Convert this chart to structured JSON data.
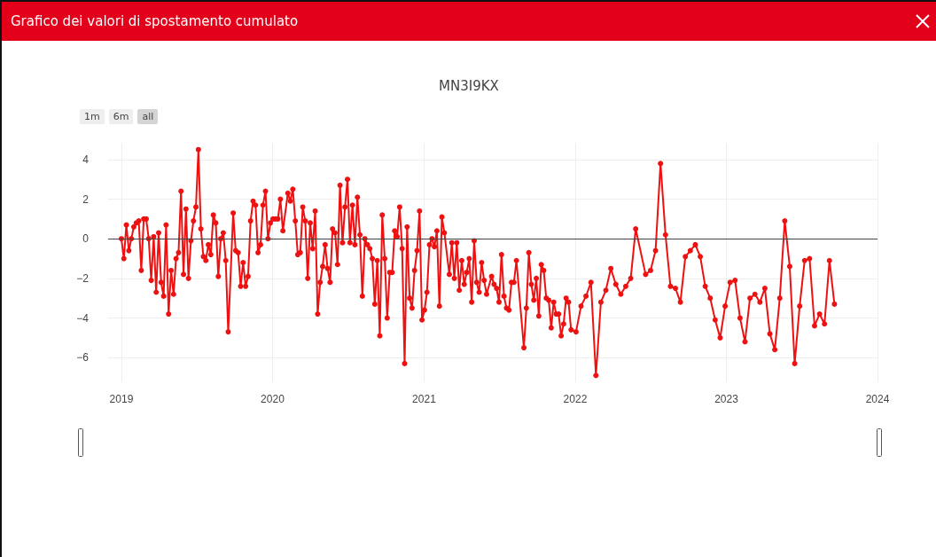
{
  "chart_data": {
    "type": "line",
    "title": "Grafico dei valori di spostamento cumulato",
    "subtitle": "MN3I9KX",
    "annotations": [
      "1m",
      "6m",
      "all"
    ],
    "color": "#ee1111",
    "marker": "circle",
    "line_style": "solid",
    "grid": true,
    "xlim": [
      "2018-11-30",
      "2024-01-01"
    ],
    "xticks": [
      "2019",
      "2020",
      "2021",
      "2022",
      "2023",
      "2024"
    ],
    "ylim": [
      -7.2,
      4.8
    ],
    "yticks": [
      -6,
      -4,
      -2,
      0,
      2,
      4
    ],
    "ref_lines": [
      {
        "axis": "y",
        "value": 0,
        "color": "#444444"
      }
    ],
    "x": [
      "2019-01-01",
      "2019-01-07",
      "2019-01-13",
      "2019-01-19",
      "2019-01-25",
      "2019-01-31",
      "2019-02-06",
      "2019-02-12",
      "2019-02-18",
      "2019-02-24",
      "2019-03-02",
      "2019-03-08",
      "2019-03-14",
      "2019-03-20",
      "2019-03-26",
      "2019-04-01",
      "2019-04-07",
      "2019-04-13",
      "2019-04-19",
      "2019-04-25",
      "2019-05-01",
      "2019-05-07",
      "2019-05-13",
      "2019-05-19",
      "2019-05-25",
      "2019-05-31",
      "2019-06-06",
      "2019-06-12",
      "2019-06-18",
      "2019-06-24",
      "2019-06-30",
      "2019-07-06",
      "2019-07-12",
      "2019-07-18",
      "2019-07-24",
      "2019-07-30",
      "2019-08-05",
      "2019-08-11",
      "2019-08-17",
      "2019-08-23",
      "2019-08-29",
      "2019-09-04",
      "2019-09-10",
      "2019-09-16",
      "2019-09-28",
      "2019-10-04",
      "2019-10-10",
      "2019-10-16",
      "2019-10-22",
      "2019-10-28",
      "2019-11-03",
      "2019-11-09",
      "2019-11-15",
      "2019-11-21",
      "2019-11-27",
      "2019-12-03",
      "2019-12-09",
      "2019-12-15",
      "2019-12-21",
      "2019-12-27",
      "2020-01-02",
      "2020-01-08",
      "2020-01-14",
      "2020-01-20",
      "2020-01-26",
      "2020-02-07",
      "2020-02-13",
      "2020-02-19",
      "2020-02-25",
      "2020-03-02",
      "2020-03-08",
      "2020-03-14",
      "2020-03-20",
      "2020-03-26",
      "2020-04-01",
      "2020-04-07",
      "2020-04-13",
      "2020-04-19",
      "2020-04-25",
      "2020-05-01",
      "2020-05-07",
      "2020-05-13",
      "2020-05-19",
      "2020-05-25",
      "2020-05-31",
      "2020-06-06",
      "2020-06-12",
      "2020-06-18",
      "2020-06-24",
      "2020-06-30",
      "2020-07-06",
      "2020-07-12",
      "2020-07-18",
      "2020-07-24",
      "2020-07-30",
      "2020-08-05",
      "2020-08-11",
      "2020-08-17",
      "2020-08-23",
      "2020-08-29",
      "2020-09-04",
      "2020-09-10",
      "2020-09-16",
      "2020-09-22",
      "2020-09-28",
      "2020-10-04",
      "2020-10-10",
      "2020-10-16",
      "2020-10-22",
      "2020-10-28",
      "2020-11-03",
      "2020-11-09",
      "2020-11-15",
      "2020-11-21",
      "2020-11-27",
      "2020-12-03",
      "2020-12-09",
      "2020-12-15",
      "2020-12-21",
      "2020-12-27",
      "2021-01-02",
      "2021-01-08",
      "2021-01-14",
      "2021-01-20",
      "2021-01-26",
      "2021-02-01",
      "2021-02-07",
      "2021-02-13",
      "2021-02-19",
      "2021-03-03",
      "2021-03-09",
      "2021-03-15",
      "2021-03-21",
      "2021-03-27",
      "2021-04-02",
      "2021-04-08",
      "2021-04-14",
      "2021-04-20",
      "2021-04-26",
      "2021-05-02",
      "2021-05-08",
      "2021-05-14",
      "2021-05-20",
      "2021-05-26",
      "2021-06-01",
      "2021-06-13",
      "2021-06-19",
      "2021-06-25",
      "2021-07-01",
      "2021-07-07",
      "2021-07-13",
      "2021-07-19",
      "2021-07-25",
      "2021-07-31",
      "2021-08-06",
      "2021-08-12",
      "2021-08-30",
      "2021-09-05",
      "2021-09-11",
      "2021-09-17",
      "2021-09-23",
      "2021-09-29",
      "2021-10-05",
      "2021-10-11",
      "2021-10-17",
      "2021-10-23",
      "2021-10-29",
      "2021-11-04",
      "2021-11-10",
      "2021-11-16",
      "2021-11-22",
      "2021-11-28",
      "2021-12-04",
      "2021-12-10",
      "2021-12-16",
      "2021-12-22",
      "2022-01-03",
      "2022-01-15",
      "2022-01-27",
      "2022-02-08",
      "2022-02-20",
      "2022-03-04",
      "2022-03-16",
      "2022-03-28",
      "2022-04-09",
      "2022-04-21",
      "2022-05-03",
      "2022-05-15",
      "2022-05-27",
      "2022-06-20",
      "2022-07-02",
      "2022-07-14",
      "2022-07-26",
      "2022-08-07",
      "2022-08-19",
      "2022-08-31",
      "2022-09-12",
      "2022-09-24",
      "2022-10-06",
      "2022-10-18",
      "2022-10-30",
      "2022-11-11",
      "2022-11-23",
      "2022-12-05",
      "2022-12-17",
      "2022-12-29",
      "2023-01-10",
      "2023-01-22",
      "2023-02-03",
      "2023-02-15",
      "2023-02-27",
      "2023-03-11",
      "2023-03-23",
      "2023-04-04",
      "2023-04-16",
      "2023-04-28",
      "2023-05-10",
      "2023-05-22",
      "2023-06-03",
      "2023-06-15",
      "2023-06-27",
      "2023-07-09",
      "2023-07-21",
      "2023-08-02",
      "2023-08-14",
      "2023-08-26",
      "2023-09-07",
      "2023-09-19"
    ],
    "values": [
      0,
      -1.0,
      0.7,
      -0.6,
      0,
      0.6,
      0.8,
      0.9,
      -1.6,
      1.0,
      1.0,
      0,
      -2.1,
      0.1,
      -2.7,
      0.3,
      -2.2,
      -2.9,
      0.7,
      -3.8,
      -1.6,
      -2.8,
      -1.0,
      -0.7,
      2.4,
      -1.8,
      1.5,
      -2.0,
      -0.1,
      0.9,
      1.6,
      4.5,
      0.5,
      -0.9,
      -1.1,
      -0.3,
      -0.8,
      1.2,
      0.8,
      -1.9,
      0,
      0.3,
      -1.1,
      -4.7,
      1.3,
      -0.6,
      -0.7,
      -2.4,
      -1.2,
      -2.4,
      -1.9,
      0.9,
      1.9,
      1.7,
      -0.7,
      -0.3,
      1.7,
      2.4,
      0,
      0.8,
      1.0,
      1.0,
      1.0,
      2.0,
      0.4,
      2.3,
      1.9,
      2.5,
      0.9,
      -0.8,
      -0.7,
      1.6,
      0.9,
      -2.0,
      0.8,
      -0.5,
      1.4,
      -3.8,
      -2.2,
      -1.4,
      -0.3,
      -1.5,
      -2.2,
      0.5,
      0.3,
      -1.3,
      2.7,
      -0.2,
      1.6,
      3.0,
      -0.2,
      1.7,
      -0.3,
      2.1,
      0.2,
      -2.9,
      0,
      -0.3,
      -0.5,
      -1.0,
      -3.3,
      -1.1,
      -4.9,
      1.2,
      -1.0,
      -4.0,
      -1.7,
      -1.7,
      0.4,
      0.1,
      1.6,
      -0.5,
      -6.3,
      0.6,
      -3.0,
      -3.5,
      -1.6,
      -0.6,
      1.4,
      -4.1,
      -3.6,
      -2.7,
      -0.3,
      0,
      -0.4,
      0.4,
      -3.4,
      1.1,
      0.3,
      -1.8,
      -0.2,
      -2.0,
      -0.2,
      -2.6,
      -1.1,
      -2.3,
      -1.7,
      -1.0,
      -3.2,
      -0.1,
      -2.2,
      -2.7,
      -1.2,
      -2.1,
      -2.8,
      -1.9,
      -2.3,
      -2.5,
      -3.2,
      -0.8,
      -2.9,
      -3.5,
      -3.6,
      -2.2,
      -2.2,
      -1.1,
      -5.5,
      -3.5,
      -0.7,
      -2.3,
      -3.1,
      -2.0,
      -3.9,
      -1.3,
      -1.6,
      -3.0,
      -3.1,
      -4.5,
      -3.2,
      -3.8,
      -3.8,
      -4.9,
      -4.3,
      -3.0,
      -3.2,
      -4.6,
      -4.7,
      -3.4,
      -2.9,
      -2.2,
      -6.9,
      -3.2,
      -2.6,
      -1.5,
      -2.3,
      -2.8,
      -2.4,
      -2.0,
      0.5,
      -1.8,
      -1.6,
      -0.6,
      3.8,
      0.2,
      -2.4,
      -2.5,
      -3.2,
      -0.9,
      -0.6,
      -0.3,
      -0.9,
      -2.4,
      -3.0,
      -4.1,
      -5.0,
      -3.4,
      -2.2,
      -2.1,
      -4.0,
      -5.2,
      -3.0,
      -2.8,
      -3.2,
      -2.5,
      -4.8,
      -5.6,
      -3.0,
      0.9,
      -1.4,
      -6.3,
      -3.4,
      -1.1,
      -1.0,
      -4.4,
      -3.8,
      -4.3,
      -1.1,
      -3.3
    ]
  }
}
